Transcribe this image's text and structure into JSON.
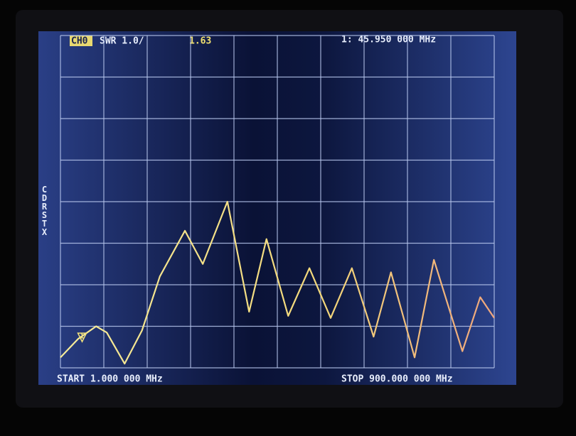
{
  "chart_data": {
    "type": "line",
    "channel": "CH0",
    "format": "SWR 1.0/",
    "marker_readout": "1: 45.950 000 MHz",
    "start_label": "START 1.000 000 MHz",
    "stop_label": "STOP 900.000 000 MHz",
    "side_menu": "CDRSTX",
    "marker": {
      "label": "1",
      "x": 45.95,
      "value": 1.63
    },
    "x": [
      1,
      38,
      75,
      97,
      134,
      170,
      207,
      259,
      296,
      347,
      392,
      428,
      473,
      517,
      561,
      605,
      650,
      686,
      735,
      775,
      834,
      871,
      900
    ],
    "series": [
      {
        "name": "CH0",
        "color": "#f3e27c",
        "values": [
          1.25,
          1.7,
          2.0,
          1.85,
          1.1,
          1.9,
          3.2,
          4.3,
          3.5,
          5.0,
          2.35,
          4.1,
          2.25,
          3.4,
          2.2,
          3.4,
          1.75,
          3.3,
          1.25,
          3.6,
          1.4,
          2.7,
          2.2
        ]
      }
    ],
    "xlim": [
      1,
      900
    ],
    "ylim": [
      1,
      9
    ],
    "xticks": [
      1,
      90.9,
      180.8,
      270.7,
      360.6,
      450.5,
      540.4,
      630.3,
      720.2,
      810.1,
      900
    ],
    "yticks": [
      1,
      2,
      3,
      4,
      5,
      6,
      7,
      8,
      9
    ],
    "grid": true
  }
}
